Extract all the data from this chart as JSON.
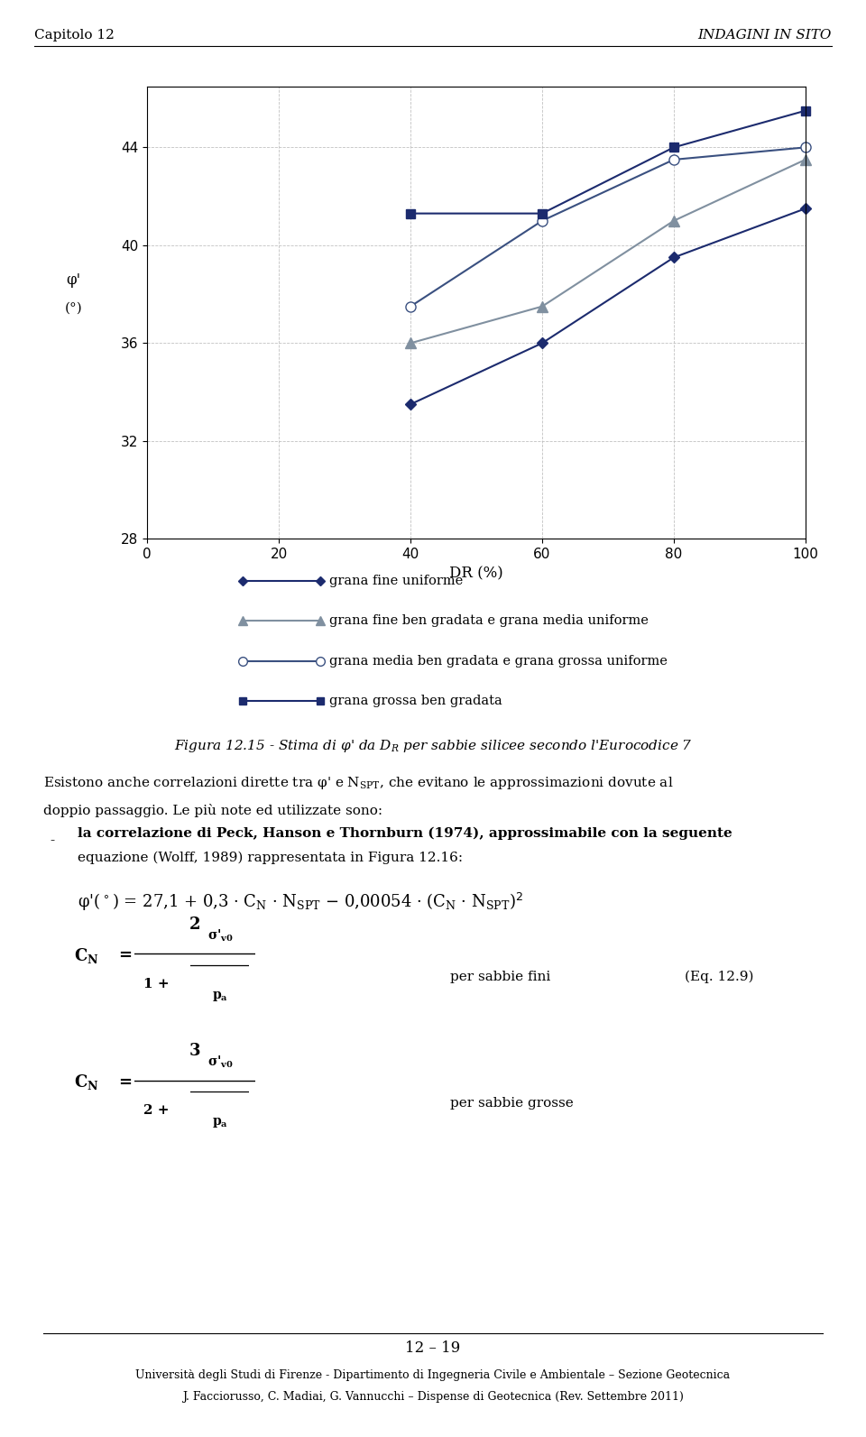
{
  "header_left": "Capitolo 12",
  "header_right": "INDAGINI IN SITO",
  "xlabel": "DR (%)",
  "xlim": [
    0,
    100
  ],
  "ylim": [
    28,
    46.5
  ],
  "yticks": [
    28,
    32,
    36,
    40,
    44
  ],
  "xticks": [
    0,
    20,
    40,
    60,
    80,
    100
  ],
  "series": [
    {
      "x": [
        40,
        60,
        80,
        100
      ],
      "y": [
        33.5,
        36.0,
        39.5,
        41.5
      ],
      "color": "#1c2b6e",
      "marker": "D",
      "markersize": 6,
      "linewidth": 1.5,
      "mfc": "#1c2b6e",
      "label": "grana fine uniforme"
    },
    {
      "x": [
        40,
        60,
        80,
        100
      ],
      "y": [
        36.0,
        37.5,
        41.0,
        43.5
      ],
      "color": "#8090a0",
      "marker": "^",
      "markersize": 8,
      "linewidth": 1.5,
      "mfc": "#8090a0",
      "label": "grana fine ben gradata e grana media uniforme"
    },
    {
      "x": [
        40,
        60,
        80,
        100
      ],
      "y": [
        37.5,
        41.0,
        43.5,
        44.0
      ],
      "color": "#3a5080",
      "marker": "o",
      "markersize": 8,
      "linewidth": 1.5,
      "mfc": "white",
      "label": "grana media ben gradata e grana grossa uniforme"
    },
    {
      "x": [
        40,
        60,
        80,
        100
      ],
      "y": [
        41.3,
        41.3,
        44.0,
        45.5
      ],
      "color": "#1c2b6e",
      "marker": "s",
      "markersize": 7,
      "linewidth": 1.5,
      "mfc": "#1c2b6e",
      "label": "grana grossa ben gradata"
    }
  ],
  "legend_labels": [
    "grana fine uniforme",
    "grana fine ben gradata e grana media uniforme",
    "grana media ben gradata e grana grossa uniforme",
    "grana grossa ben gradata"
  ],
  "footer_page": "12 – 19",
  "footer_uni": "Università degli Studi di Firenze - Dipartimento di Ingegneria Civile e Ambientale – Sezione Geotecnica",
  "footer_authors": "J. Facciorusso, C. Madiai, G. Vannucchi – Dispense di Geotecnica (Rev. Settembre 2011)"
}
